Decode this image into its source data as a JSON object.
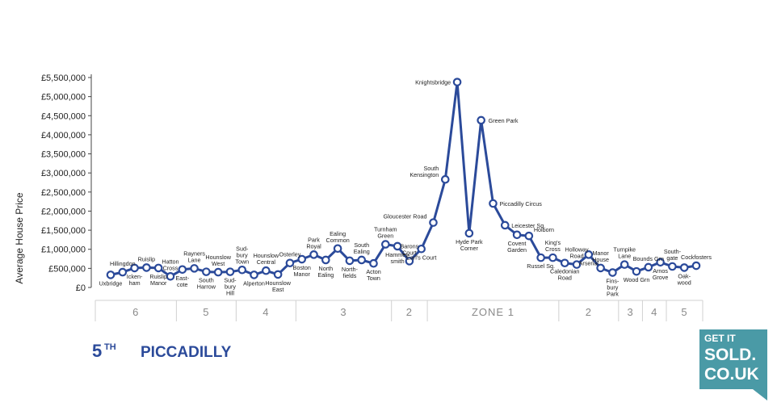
{
  "chart_data": {
    "type": "line",
    "ylabel": "Average House Price",
    "yticks": [
      "£0",
      "£500,000",
      "£1,000,000",
      "£1,500,000",
      "£2,000,000",
      "£2,500,000",
      "£3,000,000",
      "£3,500,000",
      "£4,000,000",
      "£4,500,000",
      "£5,000,000",
      "£5,500,000"
    ],
    "ylim": [
      0,
      5500000
    ],
    "line_color": "#2b4a9a",
    "points": [
      {
        "label": "Uxbridge",
        "value": 330000
      },
      {
        "label": "Hillingdon",
        "value": 400000
      },
      {
        "label": "Icken-\nham",
        "value": 510000
      },
      {
        "label": "Ruislip",
        "value": 520000
      },
      {
        "label": "Ruislip\nManor",
        "value": 510000
      },
      {
        "label": "Hatton\nCross",
        "value": 290000
      },
      {
        "label": "East-\ncote",
        "value": 470000
      },
      {
        "label": "Rayners\nLane",
        "value": 500000
      },
      {
        "label": "South\nHarrow",
        "value": 410000
      },
      {
        "label": "Hounslow\nWest",
        "value": 400000
      },
      {
        "label": "Sud-\nbury\nHill",
        "value": 410000
      },
      {
        "label": "Sud-\nbury\nTown",
        "value": 460000
      },
      {
        "label": "Alperton",
        "value": 330000
      },
      {
        "label": "Hounslow\nCentral",
        "value": 440000
      },
      {
        "label": "Hounslow\nEast",
        "value": 340000
      },
      {
        "label": "Osterley",
        "value": 640000
      },
      {
        "label": "Boston\nManor",
        "value": 740000
      },
      {
        "label": "Park\nRoyal",
        "value": 860000
      },
      {
        "label": "North\nEaling",
        "value": 720000
      },
      {
        "label": "Ealing\nCommon",
        "value": 1020000
      },
      {
        "label": "North-\nfields",
        "value": 700000
      },
      {
        "label": "South\nEaling",
        "value": 720000
      },
      {
        "label": "Acton\nTown",
        "value": 630000
      },
      {
        "label": "Turnham\nGreen",
        "value": 1130000
      },
      {
        "label": "Hammer-\nsmith",
        "value": 1080000
      },
      {
        "label": "Barons\nCourt",
        "value": 690000
      },
      {
        "label": "Earl's Court",
        "value": 1010000
      },
      {
        "label": "Gloucester Road",
        "value": 1700000
      },
      {
        "label": "South\nKensington",
        "value": 2830000
      },
      {
        "label": "Knightsbridge",
        "value": 5380000
      },
      {
        "label": "Hyde Park\nCorner",
        "value": 1420000
      },
      {
        "label": "Green Park",
        "value": 4380000
      },
      {
        "label": "Piccadilly Circus",
        "value": 2200000
      },
      {
        "label": "Leicester Sq.",
        "value": 1630000
      },
      {
        "label": "Covent\nGarden",
        "value": 1380000
      },
      {
        "label": "Holborn",
        "value": 1350000
      },
      {
        "label": "Russel Sq.",
        "value": 780000
      },
      {
        "label": "King's\nCross",
        "value": 780000
      },
      {
        "label": "Caledonian\nRoad",
        "value": 640000
      },
      {
        "label": "Holloway\nRoad",
        "value": 600000
      },
      {
        "label": "Arsenal",
        "value": 860000
      },
      {
        "label": "Manor\nHouse",
        "value": 510000
      },
      {
        "label": "Fins-\nbury\nPark",
        "value": 390000
      },
      {
        "label": "Turnpike\nLane",
        "value": 600000
      },
      {
        "label": "Wood Grn",
        "value": 420000
      },
      {
        "label": "Bounds Grn",
        "value": 530000
      },
      {
        "label": "Arnos\nGrove",
        "value": 660000
      },
      {
        "label": "South-\ngate",
        "value": 550000
      },
      {
        "label": "Oak-\nwood",
        "value": 520000
      },
      {
        "label": "Cockfosters",
        "value": 570000
      }
    ],
    "zones": [
      {
        "label": "6",
        "from": 0,
        "to": 5
      },
      {
        "label": "5",
        "from": 5,
        "to": 10
      },
      {
        "label": "4",
        "from": 10,
        "to": 15
      },
      {
        "label": "3",
        "from": 15,
        "to": 23
      },
      {
        "label": "2",
        "from": 23,
        "to": 26
      },
      {
        "label": "ZONE  1",
        "from": 26,
        "to": 37
      },
      {
        "label": "2",
        "from": 37,
        "to": 42
      },
      {
        "label": "3",
        "from": 42,
        "to": 44
      },
      {
        "label": "4",
        "from": 44,
        "to": 46
      },
      {
        "label": "5",
        "from": 46,
        "to": 49
      }
    ]
  },
  "title": {
    "rank": "5",
    "rank_suffix": "TH",
    "line": "PICCADILLY"
  },
  "logo": {
    "line1": "GET IT",
    "line2": "SOLD.",
    "line3": "CO.UK",
    "color": "#4a9aa6"
  }
}
